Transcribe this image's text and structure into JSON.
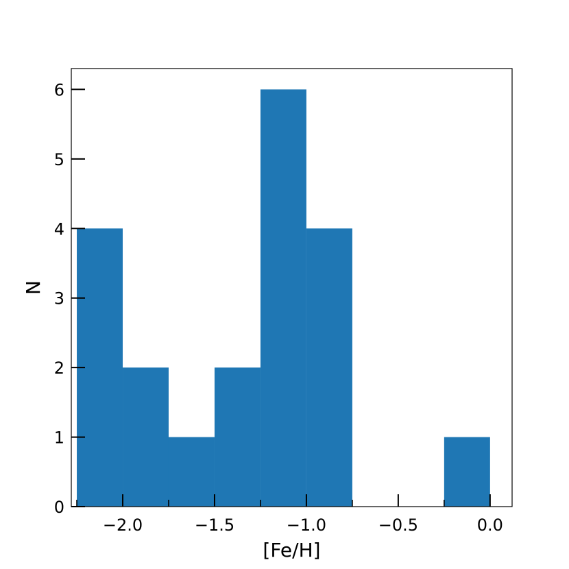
{
  "chart_data": {
    "type": "bar",
    "histogram": true,
    "bins": [
      {
        "x0": -2.25,
        "x1": -2.0,
        "count": 4
      },
      {
        "x0": -2.0,
        "x1": -1.75,
        "count": 2
      },
      {
        "x0": -1.75,
        "x1": -1.5,
        "count": 1
      },
      {
        "x0": -1.5,
        "x1": -1.25,
        "count": 2
      },
      {
        "x0": -1.25,
        "x1": -1.0,
        "count": 6
      },
      {
        "x0": -1.0,
        "x1": -0.75,
        "count": 4
      },
      {
        "x0": -0.75,
        "x1": -0.5,
        "count": 0
      },
      {
        "x0": -0.5,
        "x1": -0.25,
        "count": 0
      },
      {
        "x0": -0.25,
        "x1": 0.0,
        "count": 1
      }
    ],
    "xlabel": "[Fe/H]",
    "ylabel": "N",
    "xlim": [
      -2.28,
      0.12
    ],
    "ylim": [
      0,
      6.3
    ],
    "xticks": [
      -2.0,
      -1.5,
      -1.0,
      -0.5,
      0.0
    ],
    "xtick_labels": [
      "−2.0",
      "−1.5",
      "−1.0",
      "−0.5",
      "0.0"
    ],
    "yticks": [
      0,
      1,
      2,
      3,
      4,
      5,
      6
    ],
    "ytick_labels": [
      "0",
      "1",
      "2",
      "3",
      "4",
      "5",
      "6"
    ],
    "minor_xticks": [
      -2.25,
      -1.75,
      -1.25,
      -0.75,
      -0.25
    ],
    "bar_color": "#1f77b4",
    "grid": false,
    "ticks_direction": "in"
  }
}
